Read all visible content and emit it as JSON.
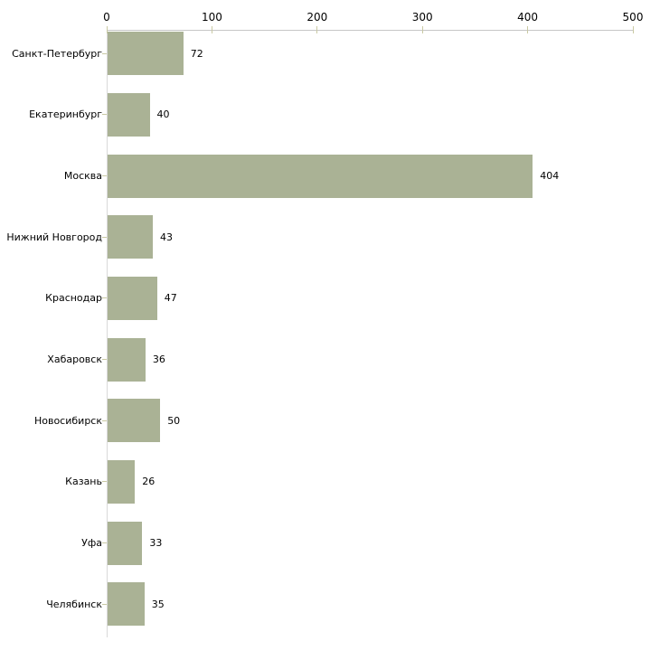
{
  "chart_data": {
    "type": "bar",
    "orientation": "horizontal",
    "title": "",
    "xlabel": "",
    "ylabel": "",
    "categories": [
      "Санкт-Петербург",
      "Екатеринбург",
      "Москва",
      "Нижний Новгород",
      "Краснодар",
      "Хабаровск",
      "Новосибирск",
      "Казань",
      "Уфа",
      "Челябинск"
    ],
    "values": [
      72,
      40,
      404,
      43,
      47,
      36,
      50,
      26,
      33,
      35
    ],
    "value_labels": [
      "72",
      "40",
      "404",
      "43",
      "47",
      "36",
      "50",
      "26",
      "33",
      "35"
    ],
    "x_ticks": [
      "0",
      "100",
      "200",
      "300",
      "400",
      "500"
    ],
    "xlim": [
      0,
      500
    ],
    "axis_position": "top",
    "grid": false,
    "legend": false,
    "colors": {
      "bar_fill": "#aab295",
      "tick_mark": "#c9c9a3",
      "x_axis_line": "#c6c6c6",
      "y_axis_line": "#d9d9d9",
      "text": "#000000",
      "background": "#ffffff"
    }
  }
}
